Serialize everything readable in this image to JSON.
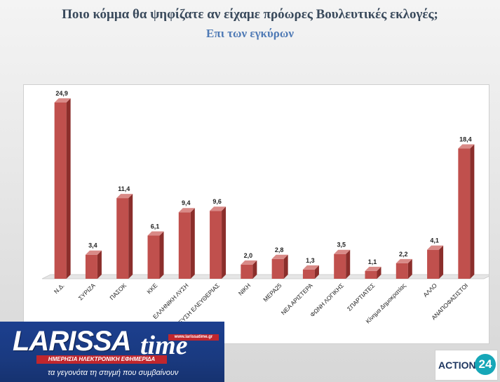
{
  "title": "Ποιο κόμμα θα ψηφίζατε αν είχαμε πρόωρες Βουλευτικές εκλογές;",
  "subtitle": "Επι των εγκύρων",
  "chart_data": {
    "type": "bar",
    "categories": [
      "Ν.Δ.",
      "ΣΥΡΙΖΑ",
      "ΠΑΣΟΚ",
      "ΚΚΕ",
      "ΕΛΛΗΝΙΚΗ ΛΥΣΗ",
      "ΠΛΕΥΣΗ ΕΛΕΥΘΕΡΙΑΣ",
      "ΝΙΚΗ",
      "ΜΕΡΑ25",
      "ΝΕΑ ΑΡΙΣΤΕΡΑ",
      "ΦΩΝΗ ΛΟΓΙΚΗΣ",
      "ΣΠΑΡΤΙΑΤΕΣ",
      "Κίνημα Δημοκρατίας",
      "ΑΛΛΟ",
      "ΑΝΑΠΟΦΑΣΙΣΤΟΙ"
    ],
    "values": [
      24.9,
      3.4,
      11.4,
      6.1,
      9.4,
      9.6,
      2.0,
      2.8,
      1.3,
      3.5,
      1.1,
      2.2,
      4.1,
      18.4
    ],
    "value_labels": [
      "24,9",
      "3,4",
      "11,4",
      "6,1",
      "9,4",
      "9,6",
      "2,0",
      "2,8",
      "1,3",
      "3,5",
      "1,1",
      "2,2",
      "4,1",
      "18,4"
    ],
    "ylim": [
      0,
      25
    ],
    "grid": false,
    "bar_color": "#c0504d",
    "bar_side_color": "#8b2e2b",
    "bar_top_color": "#d98a87"
  },
  "logos": {
    "larissa": {
      "word1": "LARISSA",
      "word2": "time",
      "url": "www.larissatime.gr",
      "strip": "ΗΜΕΡΗΣΙΑ ΗΛΕΚΤΡΟΝΙΚΗ ΕΦΗΜΕΡΙΔΑ",
      "slogan": "τα γεγονότα τη στιγμή που συμβαίνουν"
    },
    "action24": {
      "text": "ACTION",
      "number": "24"
    }
  }
}
